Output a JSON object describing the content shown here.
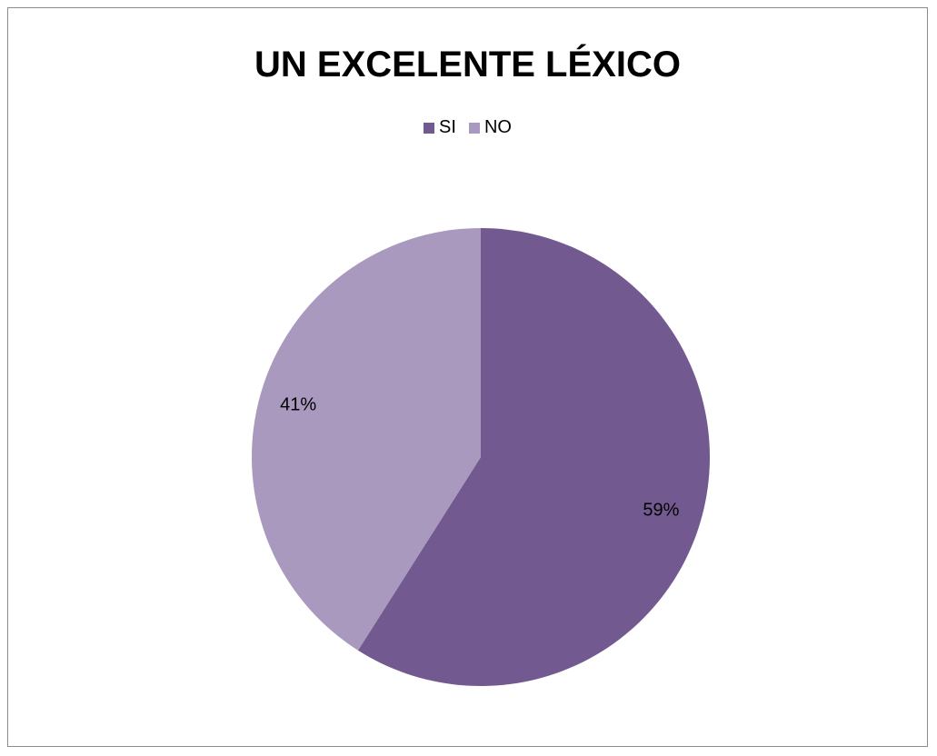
{
  "chart_data": {
    "type": "pie",
    "title": "UN EXCELENTE LÉXICO",
    "legend_position": "top",
    "categories": [
      "SI",
      "NO"
    ],
    "values": [
      59,
      41
    ],
    "labels": [
      "59%",
      "41%"
    ],
    "colors": [
      "#725990",
      "#A999BE"
    ]
  }
}
